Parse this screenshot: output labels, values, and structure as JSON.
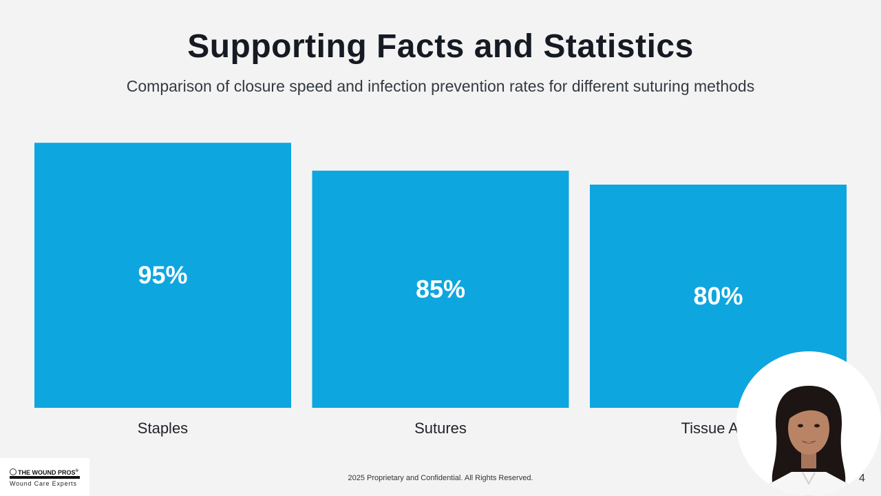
{
  "slide": {
    "title": "Supporting Facts and Statistics",
    "subtitle": "Comparison of closure speed and infection prevention rates for different suturing methods",
    "footer": "2025 Proprietary and Confidential. All Rights Reserved.",
    "page_number": "4"
  },
  "logo": {
    "brand": "THE WOUND PROS",
    "registered_mark": "®",
    "tagline": "Wound Care Experts",
    "globe_icon": "globe-icon"
  },
  "presenter": {
    "icon": "presenter-avatar"
  },
  "colors": {
    "bar": "#0ea6df",
    "background": "#f4f3f4",
    "title": "#161a22"
  },
  "chart_data": {
    "type": "bar",
    "title": "Supporting Facts and Statistics",
    "xlabel": "",
    "ylabel": "",
    "categories": [
      "Staples",
      "Sutures",
      "Tissue Adhesives"
    ],
    "visible_category_labels": [
      "Staples",
      "Sutures",
      "Tissue Adh"
    ],
    "values": [
      95,
      85,
      80
    ],
    "value_labels": [
      "95%",
      "85%",
      "80%"
    ],
    "ylim": [
      0,
      100
    ],
    "grid": false,
    "legend": "none"
  }
}
